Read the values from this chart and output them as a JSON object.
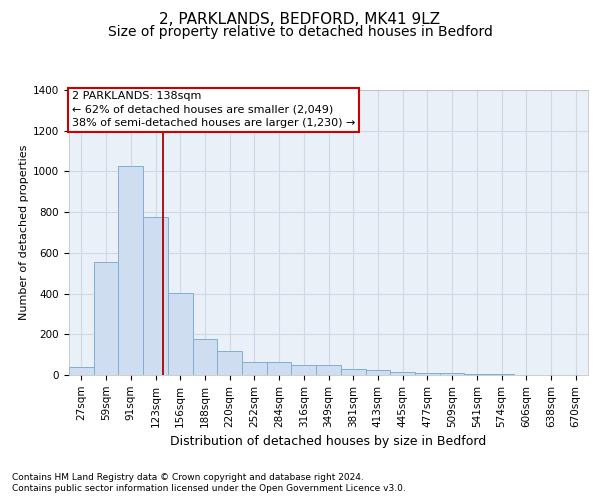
{
  "title1": "2, PARKLANDS, BEDFORD, MK41 9LZ",
  "title2": "Size of property relative to detached houses in Bedford",
  "xlabel": "Distribution of detached houses by size in Bedford",
  "ylabel": "Number of detached properties",
  "categories": [
    "27sqm",
    "59sqm",
    "91sqm",
    "123sqm",
    "156sqm",
    "188sqm",
    "220sqm",
    "252sqm",
    "284sqm",
    "316sqm",
    "349sqm",
    "381sqm",
    "413sqm",
    "445sqm",
    "477sqm",
    "509sqm",
    "541sqm",
    "574sqm",
    "606sqm",
    "638sqm",
    "670sqm"
  ],
  "values": [
    40,
    555,
    1025,
    775,
    405,
    175,
    120,
    65,
    65,
    50,
    50,
    30,
    25,
    15,
    10,
    8,
    5,
    3,
    2,
    1,
    0
  ],
  "bar_color": "#cfddf0",
  "bar_edge_color": "#7fafd4",
  "red_line_x": 3.3,
  "annotation_line1": "2 PARKLANDS: 138sqm",
  "annotation_line2": "← 62% of detached houses are smaller (2,049)",
  "annotation_line3": "38% of semi-detached houses are larger (1,230) →",
  "ylim": [
    0,
    1400
  ],
  "yticks": [
    0,
    200,
    400,
    600,
    800,
    1000,
    1200,
    1400
  ],
  "footnote1": "Contains HM Land Registry data © Crown copyright and database right 2024.",
  "footnote2": "Contains public sector information licensed under the Open Government Licence v3.0.",
  "bg_color": "#ffffff",
  "plot_bg_color": "#eaf0f8",
  "grid_color": "#d0d8e8",
  "title1_fontsize": 11,
  "title2_fontsize": 10,
  "xlabel_fontsize": 9,
  "ylabel_fontsize": 8,
  "tick_fontsize": 7.5,
  "annot_fontsize": 8,
  "footnote_fontsize": 6.5
}
